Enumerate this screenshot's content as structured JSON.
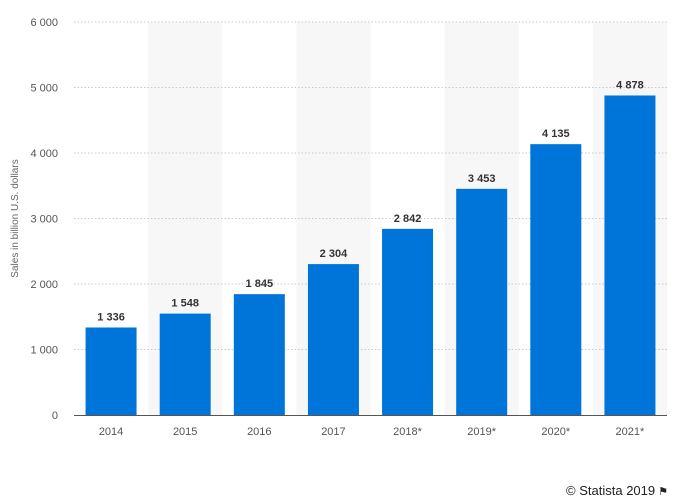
{
  "chart_data": {
    "type": "bar",
    "categories": [
      "2014",
      "2015",
      "2016",
      "2017",
      "2018*",
      "2019*",
      "2020*",
      "2021*"
    ],
    "values": [
      1336,
      1548,
      1845,
      2304,
      2842,
      3453,
      4135,
      4878
    ],
    "value_labels": [
      "1 336",
      "1 548",
      "1 845",
      "2 304",
      "2 842",
      "3 453",
      "4 135",
      "4 878"
    ],
    "title": "",
    "xlabel": "",
    "ylabel": "Sales in billion U.S. dollars",
    "ylim": [
      0,
      6000
    ],
    "yticks": [
      0,
      1000,
      2000,
      3000,
      4000,
      5000,
      6000
    ],
    "ytick_labels": [
      "0",
      "1 000",
      "2 000",
      "3 000",
      "4 000",
      "5 000",
      "6 000"
    ],
    "grid": true,
    "legend": "none",
    "bar_color": "#0075D9",
    "band_color": "#F7F7F7"
  },
  "footer": {
    "credit": "© Statista 2019",
    "flag_icon": "flag-icon"
  }
}
